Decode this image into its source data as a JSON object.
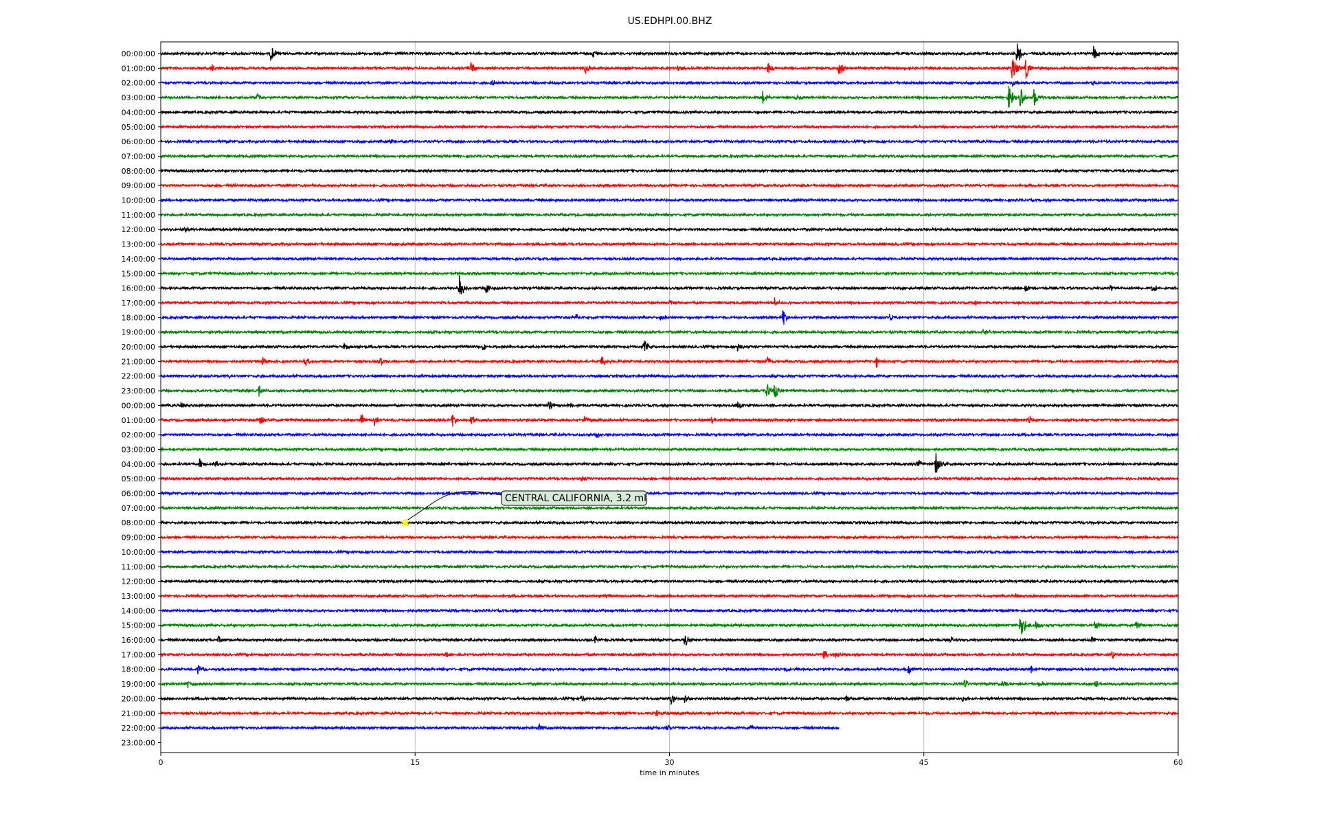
{
  "chart_data": {
    "type": "line",
    "title": "US.EDHPI.00.BHZ",
    "xlabel": "time in minutes",
    "ylabel": "",
    "xlim": [
      0,
      60
    ],
    "x_ticks": [
      "0",
      "15",
      "30",
      "45",
      "60"
    ],
    "x_tick_values": [
      0,
      15,
      30,
      45,
      60
    ],
    "grid": "vertical",
    "row_labels": [
      "00:00:00",
      "01:00:00",
      "02:00:00",
      "03:00:00",
      "04:00:00",
      "05:00:00",
      "06:00:00",
      "07:00:00",
      "08:00:00",
      "09:00:00",
      "10:00:00",
      "11:00:00",
      "12:00:00",
      "13:00:00",
      "14:00:00",
      "15:00:00",
      "16:00:00",
      "17:00:00",
      "18:00:00",
      "19:00:00",
      "20:00:00",
      "21:00:00",
      "22:00:00",
      "23:00:00",
      "00:00:00",
      "01:00:00",
      "02:00:00",
      "03:00:00",
      "04:00:00",
      "05:00:00",
      "06:00:00",
      "07:00:00",
      "08:00:00",
      "09:00:00",
      "10:00:00",
      "11:00:00",
      "12:00:00",
      "13:00:00",
      "14:00:00",
      "15:00:00",
      "16:00:00",
      "17:00:00",
      "18:00:00",
      "19:00:00",
      "20:00:00",
      "21:00:00",
      "22:00:00",
      "23:00:00"
    ],
    "trace_colors": [
      "#000000",
      "#ff0000",
      "#0000ff",
      "#008000"
    ],
    "last_trace_end_minute": 40,
    "events": [
      {
        "row": 0,
        "spikes": [
          [
            6.5,
            0.9
          ],
          [
            25.5,
            0.5
          ],
          [
            50.5,
            1.4
          ],
          [
            55,
            0.9
          ]
        ]
      },
      {
        "row": 1,
        "spikes": [
          [
            3,
            0.5
          ],
          [
            18.3,
            0.8
          ],
          [
            25,
            0.8
          ],
          [
            30.5,
            0.4
          ],
          [
            35.8,
            0.7
          ],
          [
            40,
            0.9
          ],
          [
            50.2,
            1.6
          ],
          [
            51,
            1.3
          ]
        ]
      },
      {
        "row": 2,
        "spikes": [
          [
            19.5,
            0.4
          ],
          [
            50.2,
            0.6
          ],
          [
            55,
            0.3
          ]
        ]
      },
      {
        "row": 3,
        "spikes": [
          [
            5.7,
            0.5
          ],
          [
            35.5,
            0.8
          ],
          [
            37.5,
            0.4
          ],
          [
            50,
            1.4
          ],
          [
            50.7,
            1.2
          ],
          [
            51.5,
            1.0
          ]
        ]
      },
      {
        "row": 6,
        "spikes": [
          [
            13.5,
            0.3
          ]
        ]
      },
      {
        "row": 12,
        "spikes": [
          [
            1.4,
            0.4
          ]
        ]
      },
      {
        "row": 16,
        "spikes": [
          [
            17.6,
            1.8
          ],
          [
            19.2,
            0.6
          ],
          [
            51,
            0.6
          ],
          [
            56,
            0.4
          ],
          [
            58.5,
            0.5
          ]
        ]
      },
      {
        "row": 17,
        "spikes": [
          [
            30,
            0.4
          ],
          [
            36.2,
            0.5
          ],
          [
            48,
            0.3
          ]
        ]
      },
      {
        "row": 18,
        "spikes": [
          [
            24.5,
            0.5
          ],
          [
            29.5,
            0.4
          ],
          [
            36.7,
            0.9
          ],
          [
            43,
            0.5
          ]
        ]
      },
      {
        "row": 19,
        "spikes": [
          [
            48.5,
            0.4
          ]
        ]
      },
      {
        "row": 20,
        "spikes": [
          [
            10.8,
            0.4
          ],
          [
            19,
            0.5
          ],
          [
            28.5,
            0.8
          ],
          [
            34,
            0.5
          ]
        ]
      },
      {
        "row": 21,
        "spikes": [
          [
            6,
            0.5
          ],
          [
            8.5,
            0.5
          ],
          [
            12.9,
            0.6
          ],
          [
            26,
            0.7
          ],
          [
            35.8,
            0.5
          ],
          [
            42.2,
            0.8
          ]
        ]
      },
      {
        "row": 22,
        "spikes": [
          [
            4,
            0.2
          ]
        ]
      },
      {
        "row": 23,
        "spikes": [
          [
            5.8,
            0.6
          ],
          [
            35.7,
            1.0
          ],
          [
            36.2,
            1.0
          ]
        ]
      },
      {
        "row": 24,
        "spikes": [
          [
            1.2,
            0.5
          ],
          [
            22.9,
            0.9
          ],
          [
            24,
            0.6
          ],
          [
            34,
            0.5
          ]
        ]
      },
      {
        "row": 25,
        "spikes": [
          [
            5.8,
            0.7
          ],
          [
            11.8,
            0.8
          ],
          [
            12.6,
            0.6
          ],
          [
            17.2,
            0.7
          ],
          [
            18.3,
            0.6
          ],
          [
            25,
            0.5
          ],
          [
            32.5,
            0.4
          ],
          [
            51.2,
            0.5
          ]
        ]
      },
      {
        "row": 26,
        "spikes": [
          [
            25.7,
            0.5
          ]
        ]
      },
      {
        "row": 28,
        "spikes": [
          [
            2.3,
            0.6
          ],
          [
            3.2,
            0.3
          ],
          [
            8.9,
            0.3
          ],
          [
            45.7,
            1.6
          ],
          [
            44.6,
            0.8
          ]
        ]
      },
      {
        "row": 29,
        "spikes": [
          [
            24.8,
            0.3
          ]
        ]
      },
      {
        "row": 37,
        "spikes": [
          [
            50.4,
            0.4
          ]
        ]
      },
      {
        "row": 39,
        "spikes": [
          [
            50.7,
            1.8
          ],
          [
            51.6,
            0.6
          ],
          [
            55.1,
            0.6
          ],
          [
            57.5,
            0.5
          ]
        ]
      },
      {
        "row": 40,
        "spikes": [
          [
            3.4,
            0.4
          ],
          [
            25.6,
            0.4
          ],
          [
            30.9,
            0.8
          ],
          [
            46.6,
            0.4
          ],
          [
            54.9,
            0.4
          ]
        ]
      },
      {
        "row": 41,
        "spikes": [
          [
            16.8,
            0.3
          ],
          [
            39.1,
            0.5
          ],
          [
            39.8,
            0.4
          ],
          [
            56.1,
            0.4
          ]
        ]
      },
      {
        "row": 42,
        "spikes": [
          [
            2.2,
            0.6
          ],
          [
            36.9,
            0.3
          ],
          [
            44.1,
            0.6
          ],
          [
            51.3,
            0.4
          ]
        ]
      },
      {
        "row": 43,
        "spikes": [
          [
            1.6,
            0.4
          ],
          [
            47.4,
            0.5
          ],
          [
            49.6,
            0.4
          ],
          [
            51.8,
            0.4
          ],
          [
            55.1,
            0.7
          ]
        ]
      },
      {
        "row": 44,
        "spikes": [
          [
            24.8,
            0.5
          ],
          [
            30.1,
            0.6
          ],
          [
            30.9,
            0.6
          ],
          [
            40.4,
            0.4
          ],
          [
            47.3,
            0.3
          ]
        ]
      },
      {
        "row": 45,
        "spikes": [
          [
            29.2,
            0.4
          ]
        ]
      },
      {
        "row": 46,
        "spikes": [
          [
            22.3,
            0.5
          ],
          [
            29.8,
            0.4
          ],
          [
            34.8,
            0.3
          ]
        ]
      }
    ],
    "annotation": {
      "text": "CENTRAL CALIFORNIA, 3.2 ml",
      "marker_row": 32,
      "marker_minute": 14.4,
      "marker_color": "#ffff00"
    }
  }
}
